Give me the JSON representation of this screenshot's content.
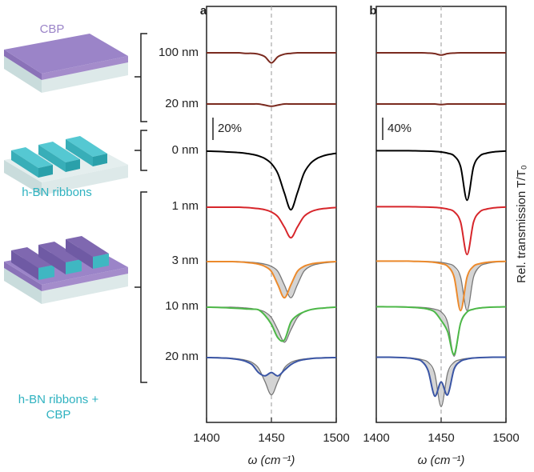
{
  "illustration_labels": [
    "CBP",
    "h-BN ribbons",
    "h-BN ribbons + CBP"
  ],
  "chart_data": [
    {
      "type": "line",
      "panel_label": "a",
      "x_label": "ω (cm⁻¹)",
      "x": [
        1400,
        1405,
        1410,
        1415,
        1420,
        1425,
        1430,
        1435,
        1440,
        1445,
        1450,
        1455,
        1460,
        1465,
        1470,
        1475,
        1480,
        1485,
        1490,
        1495,
        1500
      ],
      "xlim": [
        1400,
        1500
      ],
      "xticks": [
        1400,
        1450,
        1500
      ],
      "dashed_line_x": 1450,
      "scale_bar": {
        "value": 20,
        "label": "20%"
      },
      "series": [
        {
          "name": "100 nm",
          "color": "#7a2a1f",
          "values": [
            100,
            100,
            100,
            100,
            100,
            100,
            99.5,
            99.5,
            98.8,
            96.5,
            91,
            96.5,
            98.8,
            99.5,
            100,
            100,
            100,
            100,
            100,
            100,
            100
          ]
        },
        {
          "name": "20 nm",
          "color": "#7a2a1f",
          "values": [
            100,
            100,
            100,
            100,
            100,
            100,
            100,
            100,
            100,
            99,
            98,
            99,
            100,
            100,
            100,
            100,
            100,
            100,
            100,
            100,
            100
          ]
        },
        {
          "name": "0 nm",
          "color": "#000000",
          "values": [
            99.3,
            99.2,
            99,
            98.7,
            98.4,
            98,
            97.4,
            96.5,
            95.1,
            92.7,
            88.2,
            79.3,
            62,
            47,
            62,
            79.3,
            88.2,
            92.7,
            95.1,
            96.5,
            97.4
          ]
        },
        {
          "name": "1 nm",
          "color": "#d7262b",
          "values": [
            99.3,
            99.3,
            99.3,
            99.3,
            99.3,
            99.3,
            99,
            98.6,
            98,
            97,
            95,
            90.8,
            81.5,
            72,
            81.5,
            90.8,
            95,
            97,
            98,
            98.6,
            99
          ]
        },
        {
          "name": "3 nm",
          "color": "#ec8a2c",
          "values": [
            99.3,
            99.3,
            99.3,
            99.3,
            99.3,
            99,
            98.6,
            98,
            97,
            95,
            90.5,
            78.5,
            67,
            78.5,
            90.5,
            95,
            97,
            98,
            98.6,
            99,
            99.3
          ],
          "reference_values": [
            99.3,
            99.3,
            99.3,
            99.3,
            99.3,
            99.3,
            99,
            98.6,
            98,
            97,
            95,
            90.5,
            78.5,
            67,
            78.5,
            90.5,
            95,
            97,
            98,
            98.6,
            99
          ]
        },
        {
          "name": "10 nm",
          "color": "#4db848",
          "values": [
            99.3,
            99.2,
            99,
            98.8,
            98.5,
            98.2,
            97.8,
            97.5,
            97,
            92,
            84,
            72,
            70,
            86,
            92,
            95,
            97,
            98,
            98.5,
            99,
            99.3
          ],
          "reference_values": [
            99.3,
            99.3,
            99.3,
            99.3,
            99.3,
            99,
            98.6,
            98,
            97,
            95,
            90,
            79,
            68,
            79,
            90,
            95,
            97,
            98,
            98.6,
            99,
            99.3
          ]
        },
        {
          "name": "20 nm",
          "color": "#3a55a5",
          "values": [
            99.3,
            99.2,
            99,
            98.8,
            98.3,
            97.5,
            96,
            93,
            86,
            83,
            86,
            83,
            88,
            93,
            96,
            97.5,
            98.3,
            98.8,
            99,
            99.2,
            99.3
          ],
          "reference_values": [
            99.3,
            99.3,
            99.3,
            99,
            98.6,
            98,
            97,
            95,
            90,
            78,
            66,
            78,
            90,
            95,
            97,
            98,
            98.6,
            99,
            99.3,
            99.3,
            99.3
          ]
        }
      ]
    },
    {
      "type": "line",
      "panel_label": "b",
      "x_label": "ω (cm⁻¹)",
      "y_label": "Rel. transmission T/T₀",
      "x": [
        1400,
        1405,
        1410,
        1415,
        1420,
        1425,
        1430,
        1435,
        1440,
        1445,
        1450,
        1455,
        1460,
        1465,
        1470,
        1475,
        1480,
        1485,
        1490,
        1495,
        1500
      ],
      "xlim": [
        1400,
        1500
      ],
      "xticks": [
        1400,
        1450,
        1500
      ],
      "dashed_line_x": 1450,
      "scale_bar": {
        "value": 40,
        "label": "40%"
      },
      "series": [
        {
          "color": "#7a2a1f",
          "values": [
            100,
            100,
            100,
            100,
            100,
            100,
            100,
            100,
            99.5,
            98.5,
            96,
            98.5,
            99.5,
            100,
            100,
            100,
            100,
            100,
            100,
            100,
            100
          ]
        },
        {
          "color": "#7a2a1f",
          "values": [
            100,
            100,
            100,
            100,
            100,
            100,
            100,
            100,
            100,
            100,
            99,
            100,
            100,
            100,
            100,
            100,
            100,
            100,
            100,
            100,
            100
          ]
        },
        {
          "color": "#000000",
          "values": [
            99.4,
            99.4,
            99.4,
            99.4,
            99.4,
            99.4,
            99.2,
            99,
            98.8,
            98.2,
            97.2,
            95,
            90.3,
            71,
            11,
            71,
            90.3,
            95,
            97.2,
            98.2,
            98.8
          ]
        },
        {
          "color": "#d7262b",
          "values": [
            99.4,
            99.4,
            99.4,
            99.4,
            99.4,
            99.4,
            99.2,
            99,
            98.8,
            98.3,
            97.3,
            95.2,
            90.6,
            72,
            14,
            72,
            90.6,
            95.2,
            97.3,
            98.3,
            98.8
          ]
        },
        {
          "color": "#ec8a2c",
          "values": [
            99.4,
            99.4,
            99.4,
            99.4,
            99.4,
            99.4,
            99,
            98.8,
            98.2,
            97.2,
            95,
            90.3,
            71,
            11,
            71,
            90.3,
            95,
            97.2,
            98.2,
            98.8,
            99
          ],
          "reference_values": [
            99.4,
            99.4,
            99.4,
            99.4,
            99.4,
            99.4,
            99.2,
            99,
            98.8,
            98.2,
            97.2,
            95,
            90.3,
            71,
            11,
            71,
            90.3,
            95,
            97.2,
            98.2,
            98.8
          ]
        },
        {
          "color": "#4db848",
          "values": [
            99.4,
            99.4,
            99.3,
            99.2,
            99,
            98.6,
            98,
            97,
            95,
            90,
            75,
            55,
            14,
            70,
            90,
            95,
            97.2,
            98.2,
            98.8,
            99,
            99.2
          ],
          "reference_values": [
            99.4,
            99.4,
            99.4,
            99.4,
            99.4,
            99,
            98.8,
            98.2,
            97.2,
            95,
            90.3,
            71,
            11,
            71,
            90.3,
            95,
            97.2,
            98.2,
            98.8,
            99,
            99.4
          ]
        },
        {
          "color": "#3a55a5",
          "values": [
            99.3,
            99.3,
            99.3,
            99,
            98.5,
            97.8,
            96,
            92,
            75,
            30,
            55,
            32,
            78,
            92,
            96,
            97.8,
            98.5,
            99,
            99.3,
            99.3,
            99.3
          ],
          "reference_values": [
            99.4,
            99.4,
            99.4,
            99,
            98.8,
            98.2,
            97.2,
            95,
            90.3,
            71,
            11,
            71,
            90.3,
            95,
            97.2,
            98.2,
            98.8,
            99,
            99.4,
            99.4,
            99.4
          ]
        }
      ]
    }
  ]
}
